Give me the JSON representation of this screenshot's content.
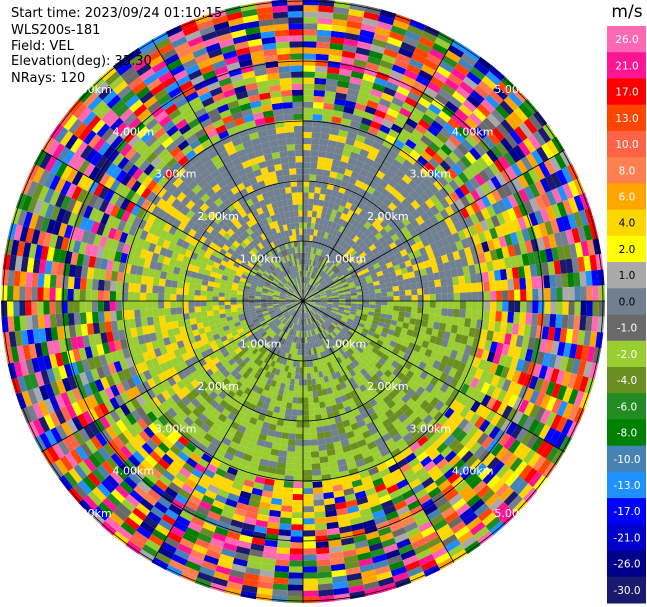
{
  "header": {
    "start_time": "Start time: 2023/09/24 01:10:15",
    "instrument": "WLS200s-181",
    "field": "Field: VEL",
    "elevation": "Elevation(deg): 35.30",
    "nrays": "NRays: 120"
  },
  "chart_data": {
    "type": "heatmap",
    "subtype": "ppi-polar",
    "field": "VEL",
    "nrays": 120,
    "range_rings_km": [
      1,
      2,
      3,
      4,
      5
    ],
    "ring_labels": [
      "1.00km",
      "2.00km",
      "3.00km",
      "4.00km",
      "5.00km"
    ],
    "colorbar": {
      "unit": "m/s",
      "ticks": [
        "26.0",
        "21.0",
        "17.0",
        "13.0",
        "10.0",
        "8.0",
        "6.0",
        "4.0",
        "2.0",
        "1.0",
        "0.0",
        "-1.0",
        "-2.0",
        "-4.0",
        "-6.0",
        "-8.0",
        "-10.0",
        "-13.0",
        "-17.0",
        "-21.0",
        "-26.0",
        "-30.0"
      ],
      "colors": [
        "#ff69b4",
        "#ff1493",
        "#ff0000",
        "#ff4500",
        "#ff6347",
        "#ff7f50",
        "#ffa500",
        "#ffd700",
        "#ffff00",
        "#a9a9a9",
        "#708090",
        "#696969",
        "#9acd32",
        "#6b8e23",
        "#228b22",
        "#008000",
        "#4682b4",
        "#1e90ff",
        "#0000ff",
        "#0000cd",
        "#00008b",
        "#191970"
      ]
    }
  }
}
